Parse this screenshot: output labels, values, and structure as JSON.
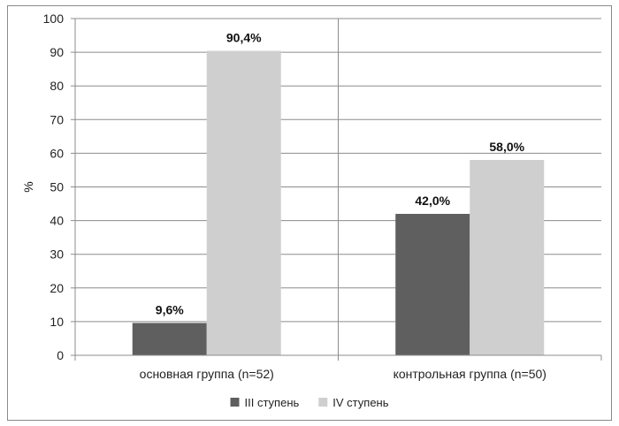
{
  "chart_data": {
    "type": "bar",
    "categories": [
      "основная группа (n=52)",
      "контрольная группа (n=50)"
    ],
    "series": [
      {
        "name": "III ступень",
        "color": "#5f5f5f",
        "values": [
          9.6,
          42.0
        ],
        "labels": [
          "9,6%",
          "42,0%"
        ]
      },
      {
        "name": "IV ступень",
        "color": "#cfcfcf",
        "values": [
          90.4,
          58.0
        ],
        "labels": [
          "90,4%",
          "58,0%"
        ]
      }
    ],
    "ylabel": "%",
    "xlabel": "",
    "ylim": [
      0,
      100
    ],
    "yticks": [
      0,
      10,
      20,
      30,
      40,
      50,
      60,
      70,
      80,
      90,
      100
    ],
    "ytick_labels": [
      "0",
      "10",
      "20",
      "30",
      "40",
      "50",
      "60",
      "70",
      "80",
      "90",
      "100"
    ],
    "grid": true,
    "legend_position": "bottom"
  }
}
